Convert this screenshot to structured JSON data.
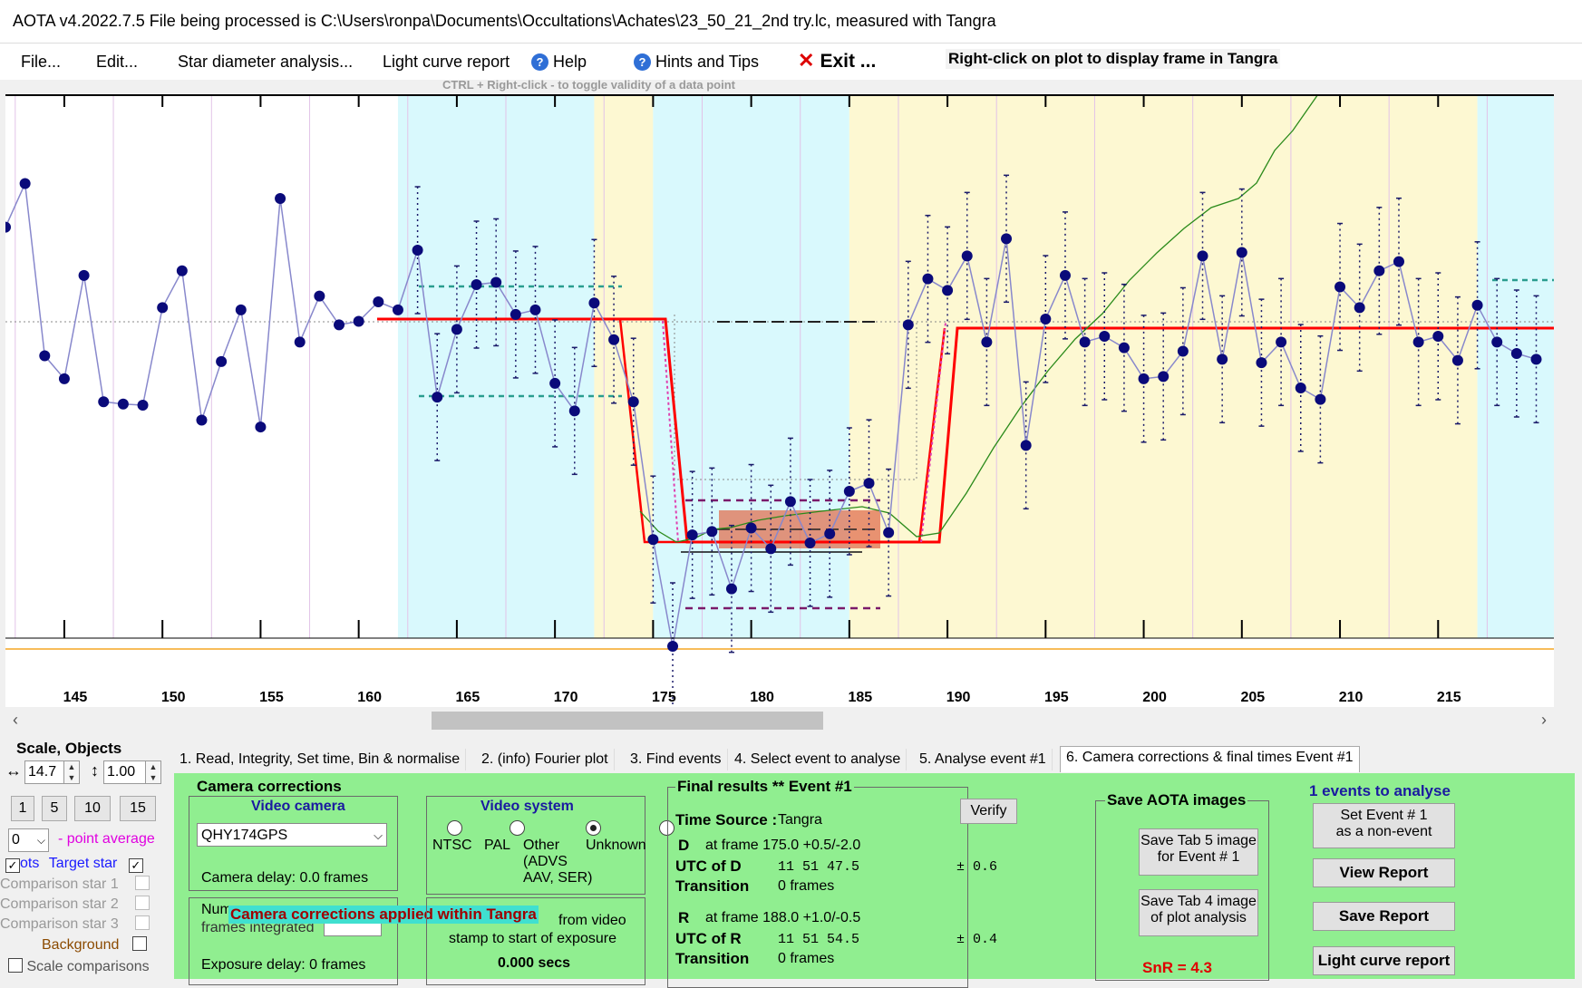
{
  "window": {
    "title": "AOTA v4.2022.7.5     File being processed is C:\\Users\\ronpa\\Documents\\Occultations\\Achates\\23_50_21_2nd try.lc, measured with Tangra"
  },
  "menu": {
    "file": "File...",
    "edit": "Edit...",
    "star_diameter": "Star diameter analysis...",
    "light_curve_report": "Light curve report",
    "help": "Help",
    "hints": "Hints and Tips",
    "exit": "Exit ...",
    "right_click_note": "Right-click on plot to display frame in Tangra",
    "ctrl_note": "CTRL + Right-click  -  to toggle validity of a data point"
  },
  "chart_data": {
    "type": "line",
    "x_ticks": [
      "145",
      "150",
      "155",
      "160",
      "165",
      "170",
      "175",
      "180",
      "185",
      "190",
      "195",
      "200",
      "205",
      "210",
      "215"
    ],
    "xlim": [
      142.0,
      220.9
    ],
    "ylim": [
      -2.7,
      1.8
    ],
    "background_bands": [
      {
        "from": 162.0,
        "to": 172.0,
        "color": "#d9f9fd"
      },
      {
        "from": 172.0,
        "to": 175.0,
        "color": "#fdf8d2"
      },
      {
        "from": 175.0,
        "to": 185.0,
        "color": "#d9f9fd"
      },
      {
        "from": 185.0,
        "to": 217.0,
        "color": "#fdf8d2"
      },
      {
        "from": 217.0,
        "to": 220.9,
        "color": "#d9f9fd"
      }
    ],
    "series": [
      {
        "color": "#8888cc",
        "points": [
          [
            142,
            0.8
          ],
          [
            143,
            1.18
          ],
          [
            144,
            -0.32
          ],
          [
            145,
            -0.52
          ],
          [
            146,
            0.38
          ],
          [
            147,
            -0.72
          ],
          [
            148,
            -0.74
          ],
          [
            149,
            -0.75
          ],
          [
            150,
            0.1
          ],
          [
            151,
            0.42
          ],
          [
            152,
            -0.88
          ],
          [
            153,
            -0.37
          ],
          [
            154,
            0.08
          ],
          [
            155,
            -0.94
          ],
          [
            156,
            1.05
          ],
          [
            157,
            -0.2
          ],
          [
            158,
            0.2
          ],
          [
            159,
            -0.05
          ],
          [
            160,
            -0.02
          ],
          [
            161,
            0.15
          ],
          [
            162,
            0.08
          ],
          [
            163,
            0.6
          ],
          [
            164,
            -0.68
          ],
          [
            165,
            -0.09
          ],
          [
            166,
            0.3
          ],
          [
            167,
            0.32
          ],
          [
            168,
            0.04
          ],
          [
            169,
            0.08
          ],
          [
            170,
            -0.56
          ],
          [
            171,
            -0.8
          ],
          [
            172,
            0.14
          ],
          [
            173,
            -0.18
          ],
          [
            174,
            -0.72
          ],
          [
            175,
            -1.92
          ],
          [
            176,
            -2.85
          ],
          [
            177,
            -1.88
          ],
          [
            178,
            -1.85
          ],
          [
            179,
            -2.35
          ],
          [
            180,
            -1.82
          ],
          [
            181,
            -2.0
          ],
          [
            182,
            -1.59
          ],
          [
            183,
            -1.95
          ],
          [
            184,
            -1.87
          ],
          [
            185,
            -1.5
          ],
          [
            186,
            -1.43
          ],
          [
            187,
            -1.86
          ],
          [
            188,
            -0.05
          ],
          [
            189,
            0.35
          ],
          [
            190,
            0.25
          ],
          [
            191,
            0.55
          ],
          [
            192,
            -0.2
          ],
          [
            193,
            0.7
          ],
          [
            194,
            -1.1
          ],
          [
            195,
            0.0
          ],
          [
            196,
            0.38
          ],
          [
            197,
            -0.2
          ],
          [
            198,
            -0.15
          ],
          [
            199,
            -0.25
          ],
          [
            200,
            -0.52
          ],
          [
            201,
            -0.5
          ],
          [
            202,
            -0.28
          ],
          [
            203,
            0.55
          ],
          [
            204,
            -0.35
          ],
          [
            205,
            0.58
          ],
          [
            206,
            -0.38
          ],
          [
            207,
            -0.2
          ],
          [
            208,
            -0.6
          ],
          [
            209,
            -0.7
          ],
          [
            210,
            0.28
          ],
          [
            211,
            0.1
          ],
          [
            212,
            0.42
          ],
          [
            213,
            0.5
          ],
          [
            214,
            -0.2
          ],
          [
            215,
            -0.15
          ],
          [
            216,
            -0.36
          ],
          [
            217,
            0.12
          ],
          [
            218,
            -0.2
          ],
          [
            219,
            -0.3
          ],
          [
            220,
            -0.35
          ]
        ]
      }
    ]
  },
  "left_panel": {
    "scale_objects": "Scale,  Objects",
    "h_scale": "14.7",
    "v_scale": "1.00",
    "btn_1": "1",
    "btn_5": "5",
    "btn_10": "10",
    "btn_15": "15",
    "point_avg_value": "0",
    "point_avg_label": "- point average",
    "pts_label": "ots",
    "target_star": "Target star",
    "comp1": "Comparison star 1",
    "comp2": "Comparison star 2",
    "comp3": "Comparison star 3",
    "background": "Background",
    "scale_comparisons": "Scale comparisons"
  },
  "tabs": [
    "1. Read, Integrity, Set time, Bin & normalise",
    "2. (info)  Fourier plot",
    "3. Find events",
    "4. Select event to analyse",
    "5. Analyse event #1",
    "6. Camera corrections & final times Event #1"
  ],
  "camera": {
    "title": "Camera corrections",
    "video_camera_title": "Video camera",
    "camera_value": "QHY174GPS",
    "camera_delay": "Camera delay: 0.0 frames",
    "num_frames_partial": "Num",
    "frames_integrated": "frames integrated",
    "exposure_delay": "Exposure delay: 0 frames",
    "applied_note": "Camera corrections applied within Tangra",
    "from_video": "from video",
    "stamp_to_start": "stamp to start of exposure",
    "secs": "0.000 secs"
  },
  "video_system": {
    "title": "Video system",
    "ntsc": "NTSC",
    "pal": "PAL",
    "other": "Other",
    "other_sub1": "(ADVS",
    "other_sub2": "AAV, SER)",
    "unknown": "Unknown"
  },
  "final_results": {
    "title": "Final results  **  Event #1",
    "time_source_label": "Time Source :",
    "time_source_value": "Tangra",
    "verify": "Verify",
    "d_label": "D",
    "d_frame": "at frame 175.0  +0.5/-2.0",
    "utc_d_label": "UTC of D",
    "utc_d_value": "11 51 47.5",
    "utc_d_err": "± 0.6",
    "transition_label": "Transition",
    "transition_d": "0 frames",
    "r_label": "R",
    "r_frame": "at frame 188.0  +1.0/-0.5",
    "utc_r_label": "UTC of R",
    "utc_r_value": "11 51 54.5",
    "utc_r_err": "± 0.4",
    "transition_r": "0 frames"
  },
  "save_images": {
    "title": "Save AOTA images",
    "tab5_l1": "Save Tab 5 image",
    "tab5_l2": "for Event # 1",
    "tab4_l1": "Save Tab 4 image",
    "tab4_l2": "of plot analysis",
    "snr": "SnR = 4.3"
  },
  "right_actions": {
    "events_count": "1  events to analyse",
    "set_event_l1": "Set Event # 1",
    "set_event_l2": "as a non-event",
    "view_report": "View Report",
    "save_report": "Save Report",
    "light_curve_report": "Light curve report"
  }
}
